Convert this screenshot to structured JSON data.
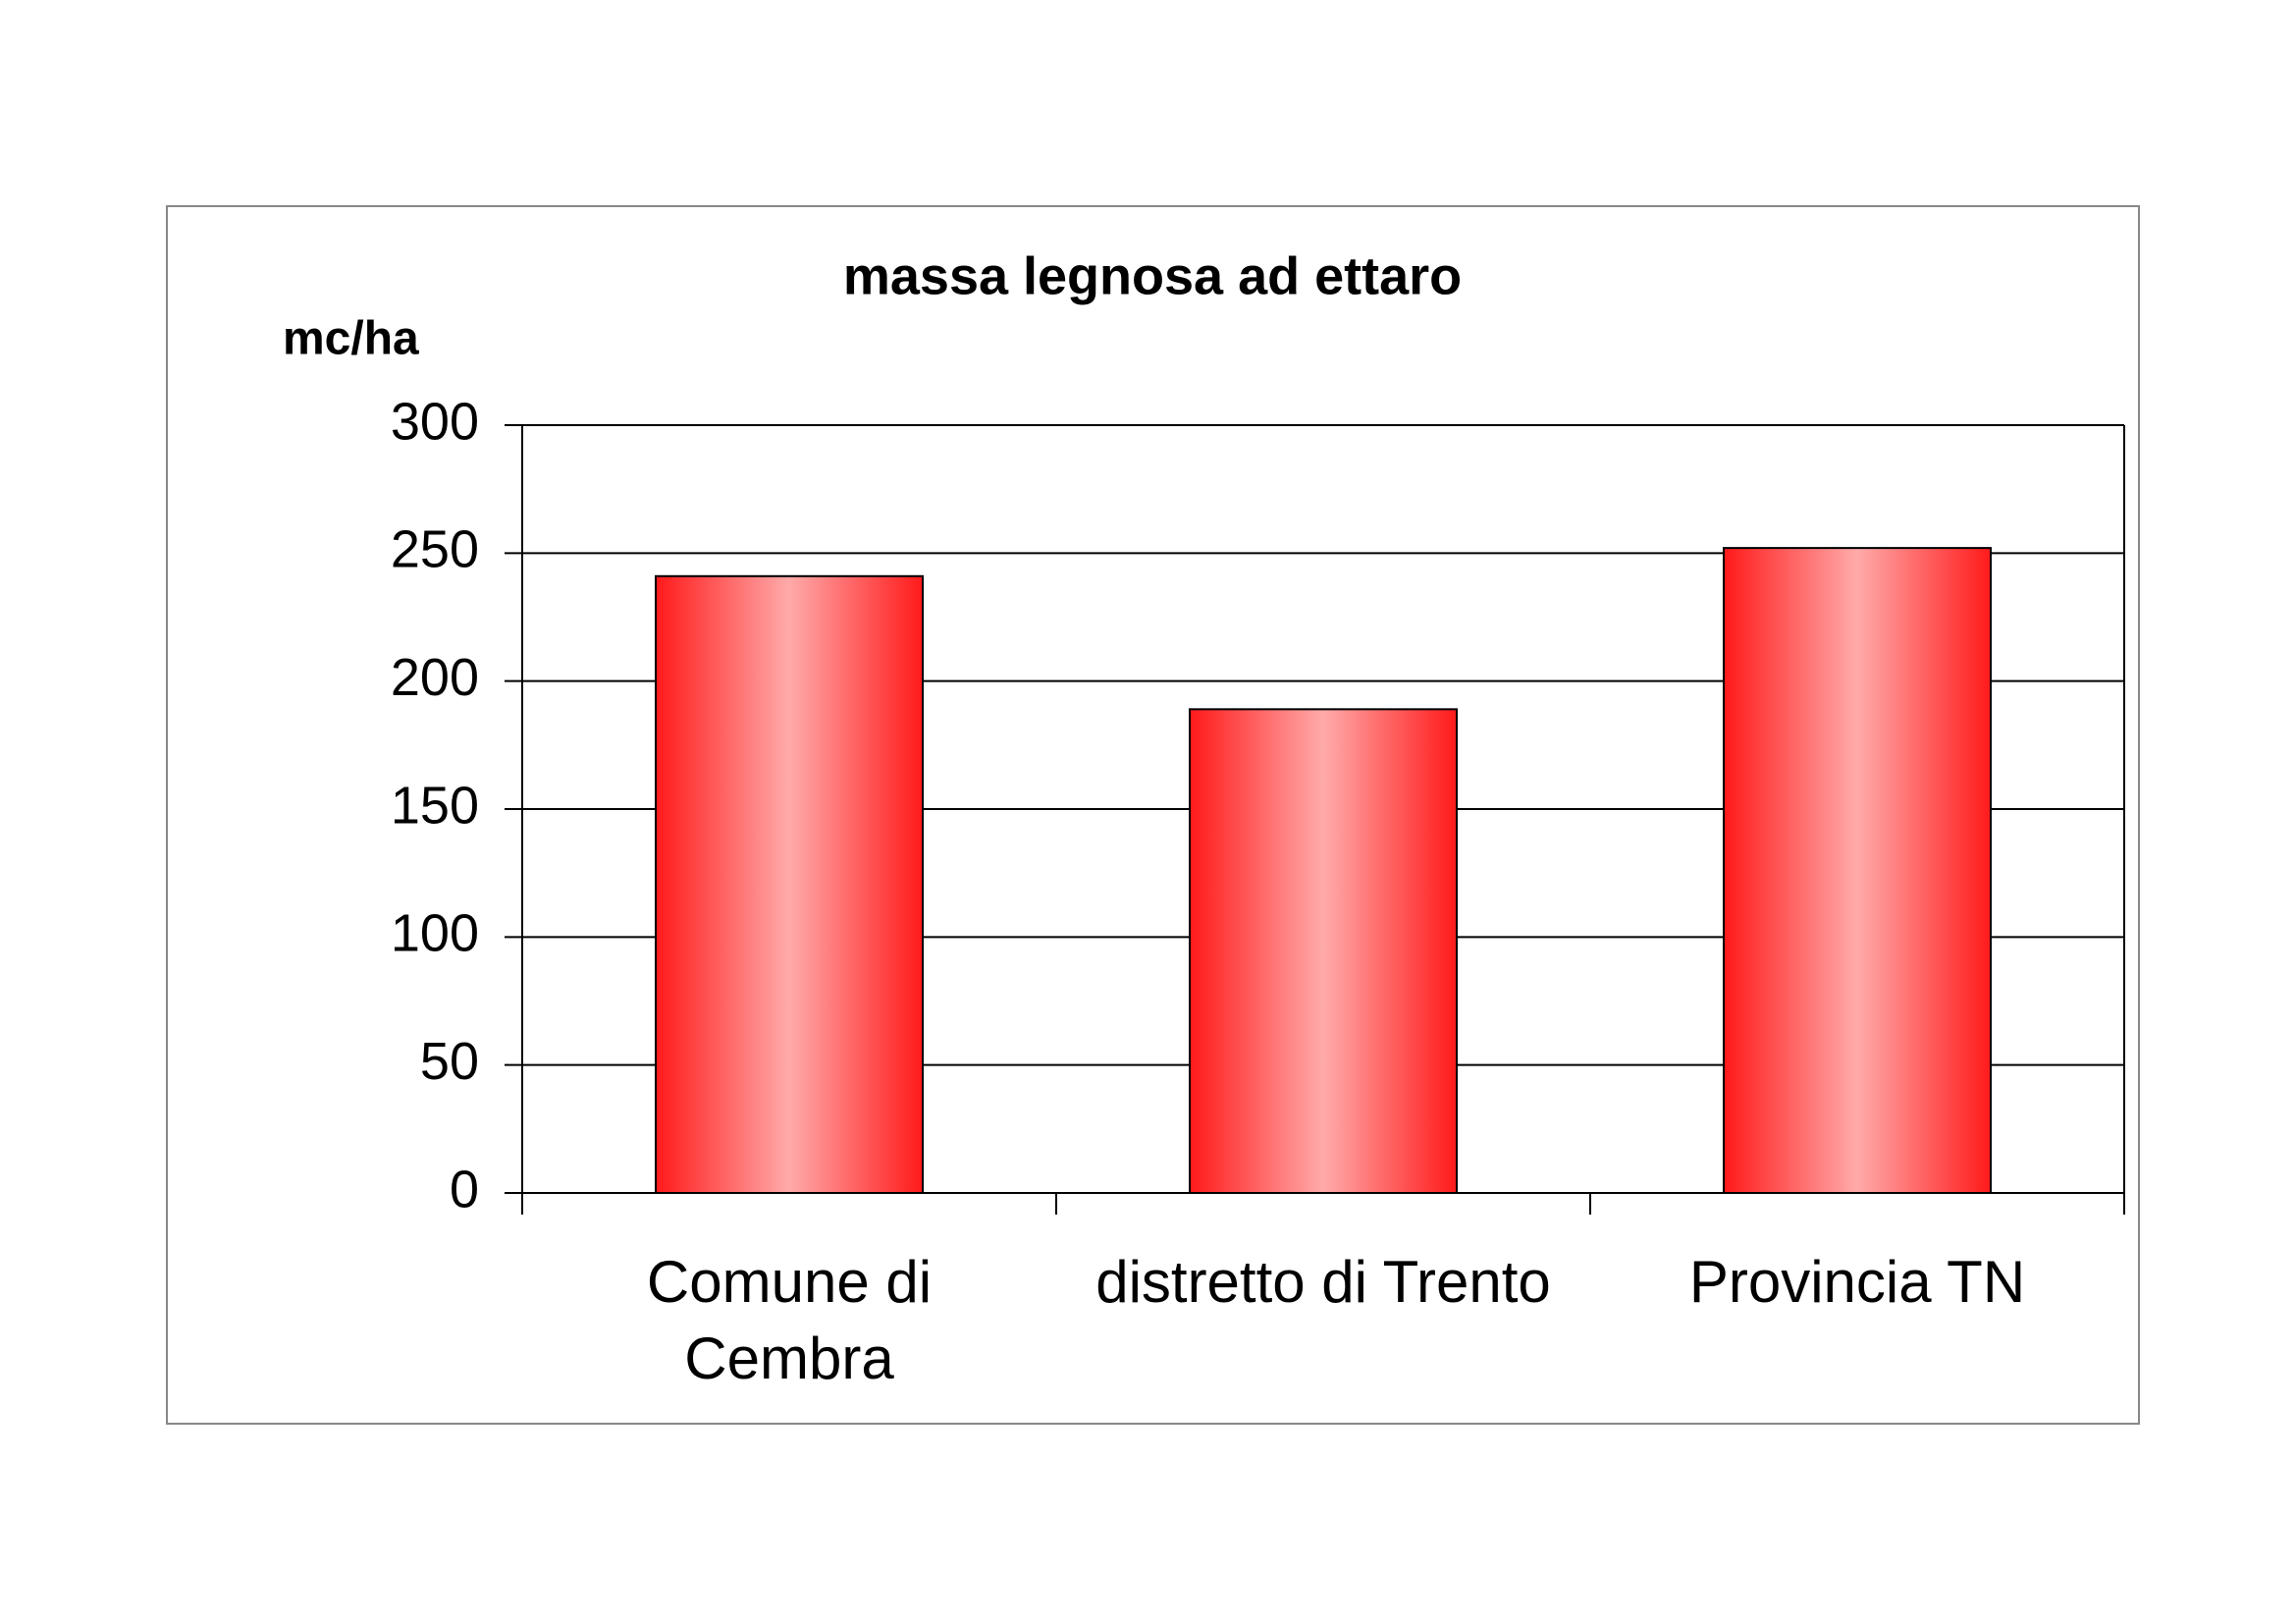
{
  "chart_data": {
    "type": "bar",
    "title": "massa legnosa ad ettaro",
    "y_label": "mc/ha",
    "categories": [
      "Comune di\nCembra",
      "distretto di Trento",
      "Provincia TN"
    ],
    "values": [
      241,
      189,
      252
    ],
    "color": "#ff1a1a",
    "ylim": [
      0,
      300
    ],
    "yticks": [
      0,
      50,
      100,
      150,
      200,
      250,
      300
    ],
    "grid": true
  }
}
